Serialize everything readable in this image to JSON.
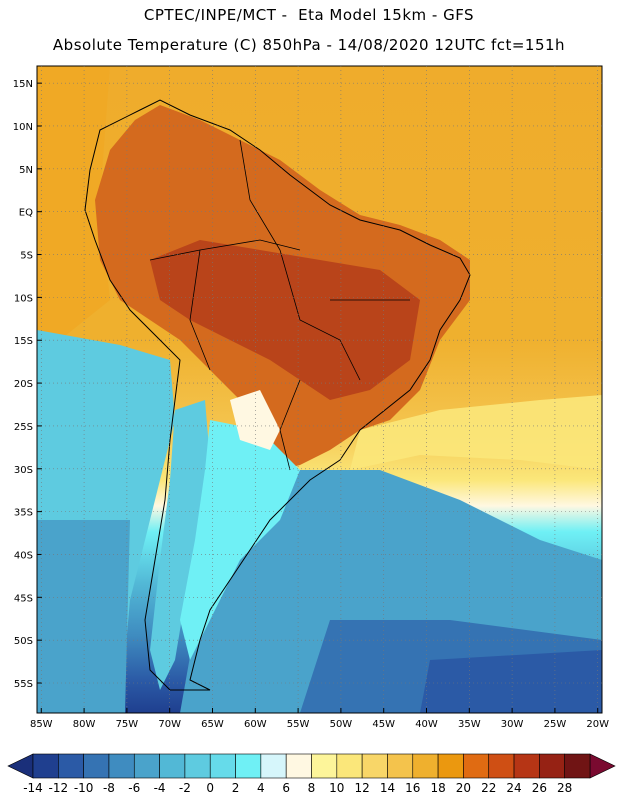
{
  "header": {
    "line1": "CPTEC/INPE/MCT -  Eta Model 15km - GFS",
    "line2": "Absolute Temperature (C) 850hPa - 14/08/2020 12UTC fct=151h"
  },
  "map": {
    "lon_range": [
      -85.5,
      -19.5
    ],
    "lat_range": [
      -58.5,
      17
    ],
    "lat_ticks": [
      "15N",
      "10N",
      "5N",
      "EQ",
      "5S",
      "10S",
      "15S",
      "20S",
      "25S",
      "30S",
      "35S",
      "40S",
      "45S",
      "50S",
      "55S"
    ],
    "lat_values": [
      15,
      10,
      5,
      0,
      -5,
      -10,
      -15,
      -20,
      -25,
      -30,
      -35,
      -40,
      -45,
      -50,
      -55
    ],
    "lon_ticks": [
      "85W",
      "80W",
      "75W",
      "70W",
      "65W",
      "60W",
      "55W",
      "50W",
      "45W",
      "40W",
      "35W",
      "30W",
      "25W",
      "20W"
    ],
    "lon_values": [
      -85,
      -80,
      -75,
      -70,
      -65,
      -60,
      -55,
      -50,
      -45,
      -40,
      -35,
      -30,
      -25,
      -20
    ]
  },
  "colorbar": {
    "labels": [
      "-14",
      "-12",
      "-10",
      "-8",
      "-6",
      "-4",
      "-2",
      "0",
      "2",
      "4",
      "6",
      "8",
      "10",
      "12",
      "14",
      "16",
      "18",
      "20",
      "22",
      "24",
      "26",
      "28"
    ],
    "colors": [
      "#1f3f8f",
      "#2b5aa6",
      "#3573b3",
      "#3f8cc0",
      "#4aa3cb",
      "#52b8d6",
      "#5ecbe0",
      "#66dbea",
      "#6ff0f5",
      "#d6f6fb",
      "#fff8e2",
      "#fdf59a",
      "#fbe77a",
      "#f8d668",
      "#f4c34c",
      "#efb02e",
      "#eb980f",
      "#e06b12",
      "#cf4f14",
      "#b63515",
      "#962214",
      "#701414"
    ]
  },
  "regions": {
    "color_ocean_north": "#efac2c",
    "color_warm_land": "#d46a1e",
    "color_hot_core": "#b9441a",
    "color_subtropic": "#f3c74a",
    "color_mild": "#fbe77a",
    "color_cold_south": "#4aa3cb",
    "color_deep_south": "#2b5aa6"
  }
}
